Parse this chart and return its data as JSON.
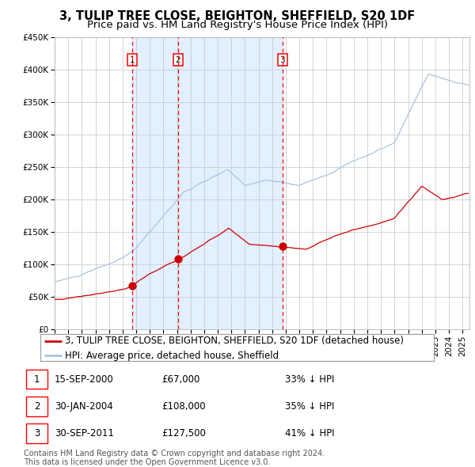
{
  "title": "3, TULIP TREE CLOSE, BEIGHTON, SHEFFIELD, S20 1DF",
  "subtitle": "Price paid vs. HM Land Registry's House Price Index (HPI)",
  "ylim": [
    0,
    450000
  ],
  "xlim_start": 1995.0,
  "xlim_end": 2025.5,
  "yticks": [
    0,
    50000,
    100000,
    150000,
    200000,
    250000,
    300000,
    350000,
    400000,
    450000
  ],
  "ytick_labels": [
    "£0",
    "£50K",
    "£100K",
    "£150K",
    "£200K",
    "£250K",
    "£300K",
    "£350K",
    "£400K",
    "£450K"
  ],
  "hpi_color": "#a8c4e0",
  "price_color": "#cc0000",
  "shade_color": "#ddeeff",
  "plot_bg": "#ffffff",
  "grid_color": "#cccccc",
  "sale_dates": [
    2000.708,
    2004.083,
    2011.747
  ],
  "sale_prices": [
    67000,
    108000,
    127500
  ],
  "sale_labels": [
    "1",
    "2",
    "3"
  ],
  "legend_label_price": "3, TULIP TREE CLOSE, BEIGHTON, SHEFFIELD, S20 1DF (detached house)",
  "legend_label_hpi": "HPI: Average price, detached house, Sheffield",
  "table_rows": [
    [
      "1",
      "15-SEP-2000",
      "£67,000",
      "33% ↓ HPI"
    ],
    [
      "2",
      "30-JAN-2004",
      "£108,000",
      "35% ↓ HPI"
    ],
    [
      "3",
      "30-SEP-2011",
      "£127,500",
      "41% ↓ HPI"
    ]
  ],
  "footnote": "Contains HM Land Registry data © Crown copyright and database right 2024.\nThis data is licensed under the Open Government Licence v3.0.",
  "title_fontsize": 10.5,
  "subtitle_fontsize": 9.5,
  "tick_fontsize": 7.5,
  "legend_fontsize": 8.5,
  "table_fontsize": 8.5,
  "footnote_fontsize": 7.0
}
